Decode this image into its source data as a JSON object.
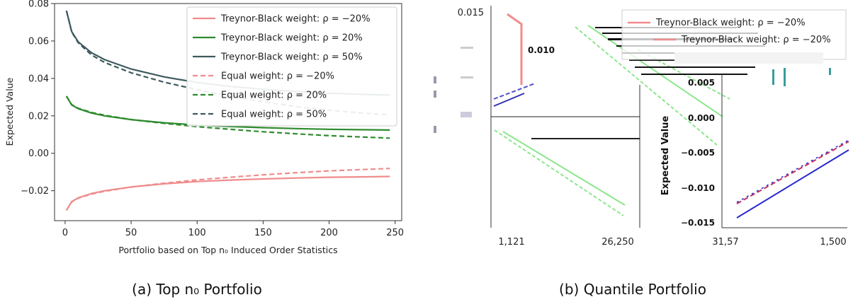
{
  "colors": {
    "rho_neg20": "#f08c8c",
    "rho_20": "#2e8b2e",
    "rho_50": "#3d5a5e",
    "right_blue": "#2a2ad0"
  },
  "captions": {
    "a": "(a) Top n₀ Portfolio",
    "b": "(b) Quantile Portfolio"
  },
  "chart_data": [
    {
      "type": "line",
      "title": "",
      "xlabel": "Portfolio based on Top n₀ Induced Order Statistics",
      "ylabel": "Expected Value",
      "xlim": [
        -8,
        255
      ],
      "ylim": [
        -0.036,
        0.08
      ],
      "xticks": [
        0,
        50,
        100,
        150,
        200,
        250
      ],
      "yticks": [
        -0.02,
        0.0,
        0.02,
        0.04,
        0.06,
        0.08
      ],
      "xtick_labels": [
        "0",
        "50",
        "100",
        "150",
        "200",
        "250"
      ],
      "ytick_labels": [
        "−0.02",
        "0.00",
        "0.02",
        "0.04",
        "0.06",
        "0.08"
      ],
      "grid": false,
      "legend_position": "top-right",
      "series": [
        {
          "name": "Treynor-Black weight: ρ = −20%",
          "color_key": "rho_neg20",
          "dash": false,
          "x": [
            1,
            5,
            10,
            20,
            30,
            50,
            75,
            100,
            125,
            150,
            175,
            200,
            225,
            246
          ],
          "y": [
            -0.0305,
            -0.0258,
            -0.0238,
            -0.0215,
            -0.02,
            -0.018,
            -0.0163,
            -0.0151,
            -0.0143,
            -0.0137,
            -0.0132,
            -0.0128,
            -0.0126,
            -0.0124
          ]
        },
        {
          "name": "Treynor-Black weight: ρ = 20%",
          "color_key": "rho_20",
          "dash": false,
          "x": [
            1,
            5,
            10,
            20,
            30,
            50,
            75,
            100,
            125,
            150,
            175,
            200,
            225,
            246
          ],
          "y": [
            0.0305,
            0.0258,
            0.0238,
            0.0215,
            0.02,
            0.018,
            0.0163,
            0.0151,
            0.0143,
            0.0137,
            0.0132,
            0.0128,
            0.0126,
            0.0124
          ]
        },
        {
          "name": "Treynor-Black weight: ρ = 50%",
          "color_key": "rho_50",
          "dash": false,
          "x": [
            1,
            5,
            10,
            20,
            30,
            50,
            75,
            100,
            125,
            150,
            175,
            200,
            225,
            246
          ],
          "y": [
            0.0762,
            0.065,
            0.0595,
            0.0537,
            0.05,
            0.045,
            0.0408,
            0.0378,
            0.0357,
            0.0342,
            0.033,
            0.0321,
            0.0315,
            0.0311
          ]
        },
        {
          "name": "Equal weight: ρ = −20%",
          "color_key": "rho_neg20",
          "dash": true,
          "x": [
            1,
            5,
            10,
            20,
            30,
            50,
            75,
            100,
            125,
            150,
            175,
            200,
            225,
            246
          ],
          "y": [
            -0.0305,
            -0.026,
            -0.024,
            -0.0218,
            -0.0203,
            -0.018,
            -0.016,
            -0.0142,
            -0.0128,
            -0.0115,
            -0.0104,
            -0.0094,
            -0.0087,
            -0.0081
          ]
        },
        {
          "name": "Equal weight: ρ = 20%",
          "color_key": "rho_20",
          "dash": true,
          "x": [
            1,
            5,
            10,
            20,
            30,
            50,
            75,
            100,
            125,
            150,
            175,
            200,
            225,
            246
          ],
          "y": [
            0.0305,
            0.026,
            0.024,
            0.0218,
            0.0203,
            0.018,
            0.016,
            0.0142,
            0.0128,
            0.0115,
            0.0104,
            0.0094,
            0.0087,
            0.0081
          ]
        },
        {
          "name": "Equal weight: ρ = 50%",
          "color_key": "rho_50",
          "dash": true,
          "x": [
            1,
            5,
            10,
            20,
            30,
            50,
            75,
            100,
            125,
            150,
            175,
            200,
            225,
            246
          ],
          "y": [
            0.0762,
            0.0648,
            0.059,
            0.0525,
            0.0485,
            0.043,
            0.038,
            0.034,
            0.0305,
            0.0275,
            0.025,
            0.023,
            0.0215,
            0.0205
          ]
        }
      ]
    },
    {
      "type": "line",
      "title": "",
      "ylabel": "Expected Value",
      "ylim": [
        -0.016,
        0.016
      ],
      "yticks": [
        0.015,
        0.01,
        0.005,
        0.0,
        -0.005,
        -0.01,
        -0.015
      ],
      "ytick_labels": [
        "0.015",
        "0.010",
        "0.005",
        "0.000",
        "−0.005",
        "−0.010",
        "−0.015"
      ],
      "xtick_labels": [
        "1,121",
        "26,250",
        "31,57",
        "1,500"
      ],
      "legend_entries": [
        "Treynor-Black weight: ρ = −20%",
        "Treynor-Black weight: ρ = −20%"
      ],
      "grid": false,
      "legend_position": "top-right",
      "rendering": "corrupted"
    }
  ]
}
